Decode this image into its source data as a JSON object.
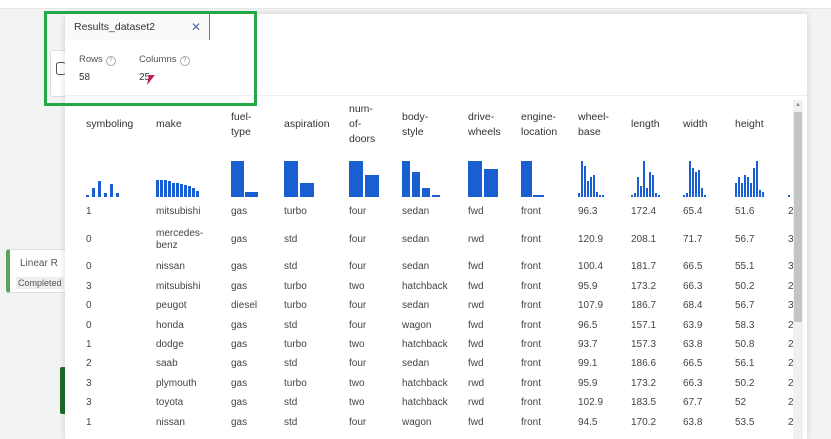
{
  "tab": {
    "title": "Results_dataset2",
    "close_icon": "close-icon"
  },
  "stats": {
    "rows_label": "Rows",
    "rows_value": "58",
    "columns_label": "Columns",
    "columns_value": "25",
    "info_glyph": "?"
  },
  "background": {
    "card_title": "Linear R",
    "card_status": "Completed",
    "highlight_color": "#22a846"
  },
  "columns": [
    {
      "name": "symboling",
      "hist": [
        3,
        25,
        45,
        10,
        35,
        12
      ]
    },
    {
      "name": "make",
      "hist": [
        48,
        46,
        46,
        44,
        40,
        38,
        36,
        34,
        30,
        24,
        18
      ]
    },
    {
      "name": "fuel-\ntype",
      "hist": [
        100,
        14
      ]
    },
    {
      "name": "aspiration",
      "hist": [
        100,
        40
      ]
    },
    {
      "name": "num-\nof-\ndoors",
      "hist": [
        100,
        60
      ]
    },
    {
      "name": "body-\nstyle",
      "hist": [
        100,
        70,
        25,
        3
      ]
    },
    {
      "name": "drive-\nwheels",
      "hist": [
        100,
        78
      ]
    },
    {
      "name": "engine-\nlocation",
      "hist": [
        100,
        2
      ]
    },
    {
      "name": "wheel-\nbase",
      "hist": [
        10,
        100,
        85,
        45,
        55,
        60,
        15,
        5,
        5
      ]
    },
    {
      "name": "length",
      "hist": [
        5,
        10,
        55,
        30,
        100,
        25,
        70,
        60,
        10,
        5
      ]
    },
    {
      "name": "width",
      "hist": [
        5,
        10,
        100,
        80,
        70,
        75,
        25,
        5
      ]
    },
    {
      "name": "height",
      "hist": [
        40,
        55,
        40,
        60,
        55,
        40,
        80,
        100,
        20,
        15
      ]
    },
    {
      "name": "",
      "hist": [
        5
      ]
    }
  ],
  "rows": [
    [
      "1",
      "mitsubishi",
      "gas",
      "turbo",
      "four",
      "sedan",
      "fwd",
      "front",
      "96.3",
      "172.4",
      "65.4",
      "51.6",
      "2"
    ],
    [
      "0",
      "mercedes-\nbenz",
      "gas",
      "std",
      "four",
      "sedan",
      "rwd",
      "front",
      "120.9",
      "208.1",
      "71.7",
      "56.7",
      "3"
    ],
    [
      "0",
      "nissan",
      "gas",
      "std",
      "four",
      "sedan",
      "fwd",
      "front",
      "100.4",
      "181.7",
      "66.5",
      "55.1",
      "3"
    ],
    [
      "3",
      "mitsubishi",
      "gas",
      "turbo",
      "two",
      "hatchback",
      "fwd",
      "front",
      "95.9",
      "173.2",
      "66.3",
      "50.2",
      "2"
    ],
    [
      "0",
      "peugot",
      "diesel",
      "turbo",
      "four",
      "sedan",
      "rwd",
      "front",
      "107.9",
      "186.7",
      "68.4",
      "56.7",
      "3"
    ],
    [
      "0",
      "honda",
      "gas",
      "std",
      "four",
      "wagon",
      "fwd",
      "front",
      "96.5",
      "157.1",
      "63.9",
      "58.3",
      "2"
    ],
    [
      "1",
      "dodge",
      "gas",
      "turbo",
      "two",
      "hatchback",
      "fwd",
      "front",
      "93.7",
      "157.3",
      "63.8",
      "50.8",
      "2"
    ],
    [
      "2",
      "saab",
      "gas",
      "std",
      "four",
      "sedan",
      "fwd",
      "front",
      "99.1",
      "186.6",
      "66.5",
      "56.1",
      "2"
    ],
    [
      "3",
      "plymouth",
      "gas",
      "turbo",
      "two",
      "hatchback",
      "rwd",
      "front",
      "95.9",
      "173.2",
      "66.3",
      "50.2",
      "2"
    ],
    [
      "3",
      "toyota",
      "gas",
      "std",
      "two",
      "hatchback",
      "rwd",
      "front",
      "102.9",
      "183.5",
      "67.7",
      "52",
      "2"
    ],
    [
      "1",
      "nissan",
      "gas",
      "std",
      "four",
      "wagon",
      "fwd",
      "front",
      "94.5",
      "170.2",
      "63.8",
      "53.5",
      "2"
    ]
  ]
}
